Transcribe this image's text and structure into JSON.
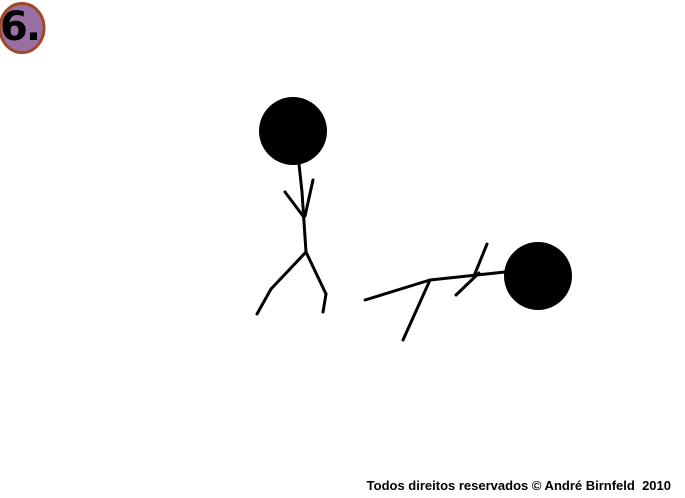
{
  "badge": {
    "number": "6.",
    "fill_color": "#9a6fa3",
    "border_color": "#a0482a"
  },
  "scene": {
    "ink_color": "#000000",
    "background_color": "#ffffff"
  },
  "footer": {
    "copyright": "Todos direitos reservados © André Birnfeld  2010"
  }
}
